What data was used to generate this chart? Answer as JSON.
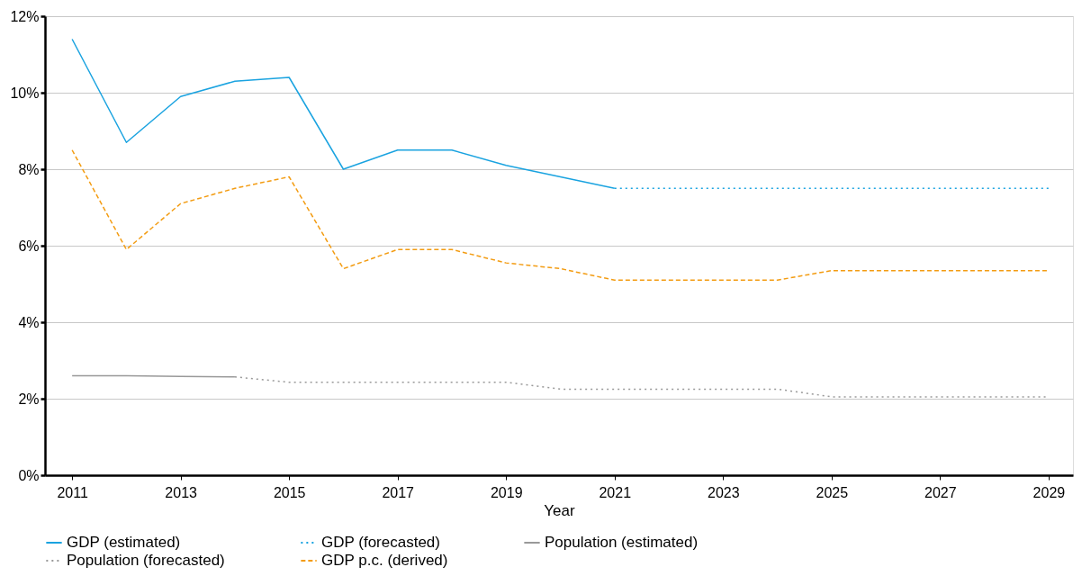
{
  "chart_data": {
    "type": "line",
    "xlabel": "Year",
    "x": [
      2011,
      2012,
      2013,
      2014,
      2015,
      2016,
      2017,
      2018,
      2019,
      2020,
      2021,
      2022,
      2023,
      2024,
      2025,
      2026,
      2027,
      2028,
      2029
    ],
    "series": [
      {
        "name": "GDP (estimated)",
        "color": "#1aa3e0",
        "line_style": "solid",
        "values": [
          11.4,
          8.7,
          9.9,
          10.3,
          10.4,
          8.0,
          8.5,
          8.5,
          8.1,
          7.8,
          7.5,
          null,
          null,
          null,
          null,
          null,
          null,
          null,
          null
        ]
      },
      {
        "name": "GDP (forecasted)",
        "color": "#1aa3e0",
        "line_style": "dotted",
        "values": [
          null,
          null,
          null,
          null,
          null,
          null,
          null,
          null,
          null,
          null,
          7.5,
          7.5,
          7.5,
          7.5,
          7.5,
          7.5,
          7.5,
          7.5,
          7.5
        ]
      },
      {
        "name": "Population (estimated)",
        "color": "#999999",
        "line_style": "solid",
        "values": [
          2.6,
          2.6,
          2.58,
          2.57,
          null,
          null,
          null,
          null,
          null,
          null,
          null,
          null,
          null,
          null,
          null,
          null,
          null,
          null,
          null
        ]
      },
      {
        "name": "Population (forecasted)",
        "color": "#999999",
        "line_style": "dotted",
        "values": [
          null,
          null,
          null,
          2.57,
          2.43,
          2.43,
          2.43,
          2.43,
          2.43,
          2.25,
          2.25,
          2.25,
          2.25,
          2.25,
          2.05,
          2.05,
          2.05,
          2.05,
          2.05
        ]
      },
      {
        "name": "GDP p.c. (derived)",
        "color": "#f39c12",
        "line_style": "dashed",
        "values": [
          8.5,
          5.9,
          7.1,
          7.5,
          7.8,
          5.4,
          5.9,
          5.9,
          5.55,
          5.4,
          5.1,
          5.1,
          5.1,
          5.1,
          5.35,
          5.35,
          5.35,
          5.35,
          5.35
        ]
      }
    ],
    "xlim": [
      2010.5,
      2029.45
    ],
    "xticks": [
      2011,
      2013,
      2015,
      2017,
      2019,
      2021,
      2023,
      2025,
      2027,
      2029
    ],
    "ylim": [
      0,
      12
    ],
    "yticks": [
      {
        "value": 0,
        "label": "0%"
      },
      {
        "value": 2,
        "label": "2%"
      },
      {
        "value": 4,
        "label": "4%"
      },
      {
        "value": 6,
        "label": "6%"
      },
      {
        "value": 8,
        "label": "8%"
      },
      {
        "value": 10,
        "label": "10%"
      },
      {
        "value": 12,
        "label": "12%"
      }
    ],
    "grid": "y",
    "legend": "bottom left"
  }
}
